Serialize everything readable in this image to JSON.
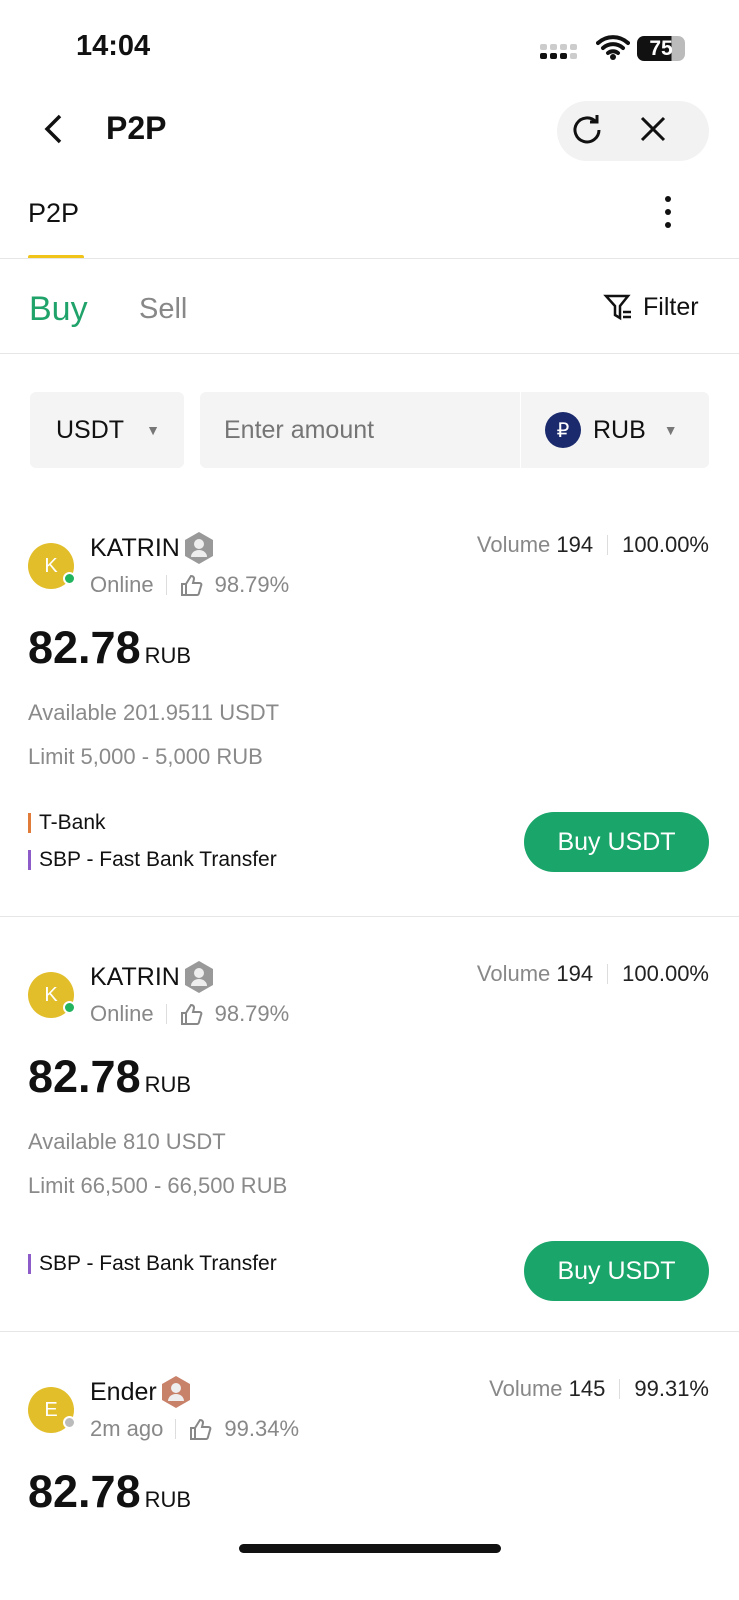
{
  "status": {
    "time": "14:04",
    "battery": "75"
  },
  "header": {
    "title": "P2P"
  },
  "tabs": [
    {
      "label": "P2P",
      "active": true
    }
  ],
  "trade": {
    "buy": "Buy",
    "sell": "Sell",
    "filter": "Filter",
    "accent": "#20a36a"
  },
  "inputs": {
    "crypto": "USDT",
    "amount_placeholder": "Enter amount",
    "fiat": "RUB",
    "fiat_symbol": "₽"
  },
  "ads": [
    {
      "initial": "K",
      "name": "KATRIN",
      "status": "Online",
      "rating": "98.79%",
      "volume_label": "Volume",
      "volume": "194",
      "completion": "100.00%",
      "price": "82.78",
      "currency": "RUB",
      "available": "Available 201.9511 USDT",
      "limit": "Limit 5,000 - 5,000 RUB",
      "payments": [
        {
          "name": "T-Bank",
          "color": "#e07b39"
        },
        {
          "name": "SBP - Fast Bank Transfer",
          "color": "#8e5cc8"
        }
      ],
      "button": "Buy USDT",
      "online": true
    },
    {
      "initial": "K",
      "name": "KATRIN",
      "status": "Online",
      "rating": "98.79%",
      "volume_label": "Volume",
      "volume": "194",
      "completion": "100.00%",
      "price": "82.78",
      "currency": "RUB",
      "available": "Available 810 USDT",
      "limit": "Limit 66,500 - 66,500 RUB",
      "payments": [
        {
          "name": "SBP - Fast Bank Transfer",
          "color": "#8e5cc8"
        }
      ],
      "button": "Buy USDT",
      "online": true
    },
    {
      "initial": "E",
      "name": "Ender",
      "status": "2m ago",
      "rating": "99.34%",
      "volume_label": "Volume",
      "volume": "145",
      "completion": "99.31%",
      "price": "82.78",
      "currency": "RUB",
      "online": false
    }
  ]
}
